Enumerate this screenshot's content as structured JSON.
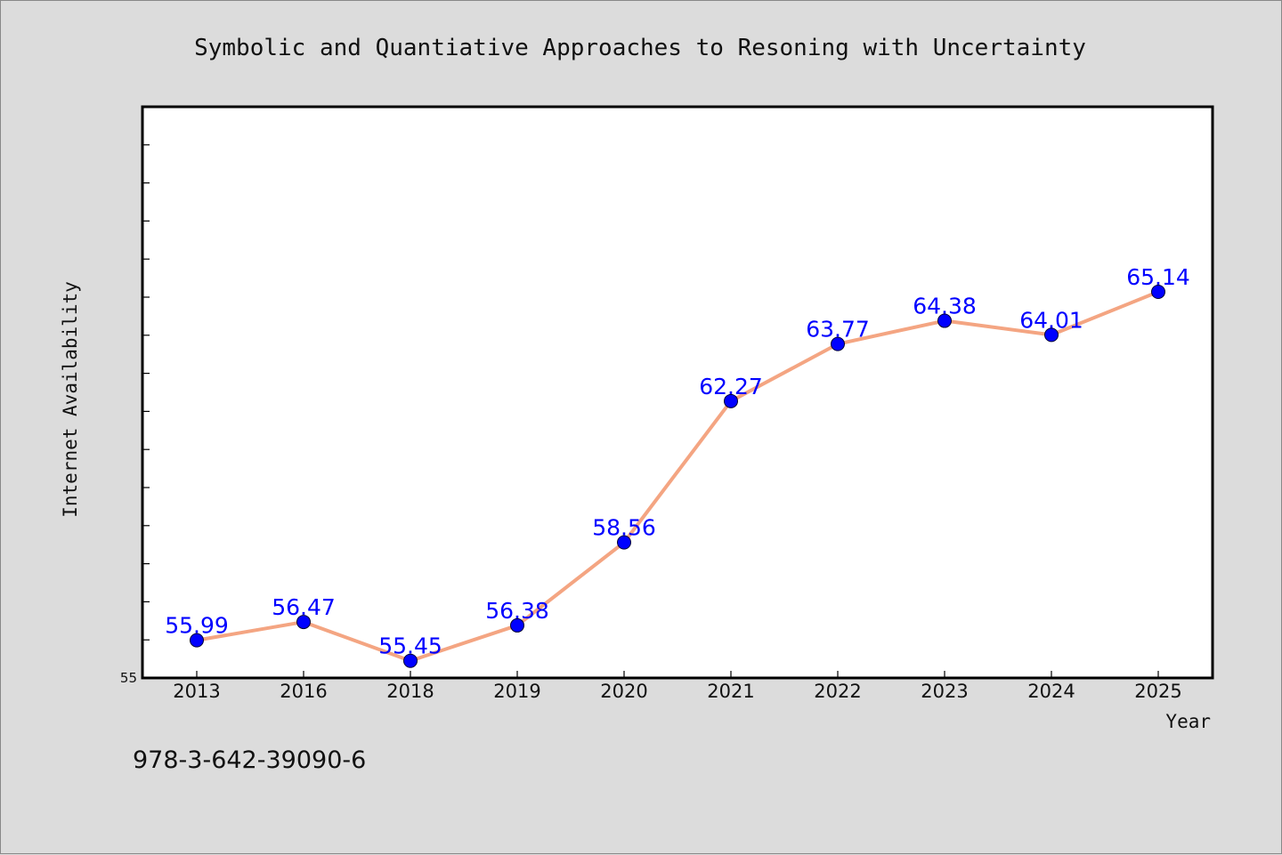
{
  "footer": {
    "text": "978-3-642-39090-6"
  },
  "colors": {
    "background": "#dcdcdc",
    "plot_background": "#ffffff",
    "line": "#f4a582",
    "marker": "#0000ff",
    "label": "#0000ff"
  },
  "chart_data": {
    "type": "line",
    "title": "Symbolic and Quantiative Approaches to Resoning with Uncertainty",
    "xlabel": "Year",
    "ylabel": "Internet Availability",
    "categories": [
      "2013",
      "2016",
      "2018",
      "2019",
      "2020",
      "2021",
      "2022",
      "2023",
      "2024",
      "2025"
    ],
    "series": [
      {
        "values": [
          55.99,
          56.47,
          55.45,
          56.38,
          58.56,
          62.27,
          63.77,
          64.38,
          64.01,
          65.14
        ],
        "labels": [
          "55.99",
          "56.47",
          "55.45",
          "56.38",
          "58.56",
          "62.27",
          "63.77",
          "64.38",
          "64.01",
          "65.14"
        ]
      }
    ],
    "ylim": [
      55,
      70
    ],
    "yticks_labeled": [
      "55"
    ],
    "ytick_step": 1,
    "grid": false,
    "legend": false
  }
}
